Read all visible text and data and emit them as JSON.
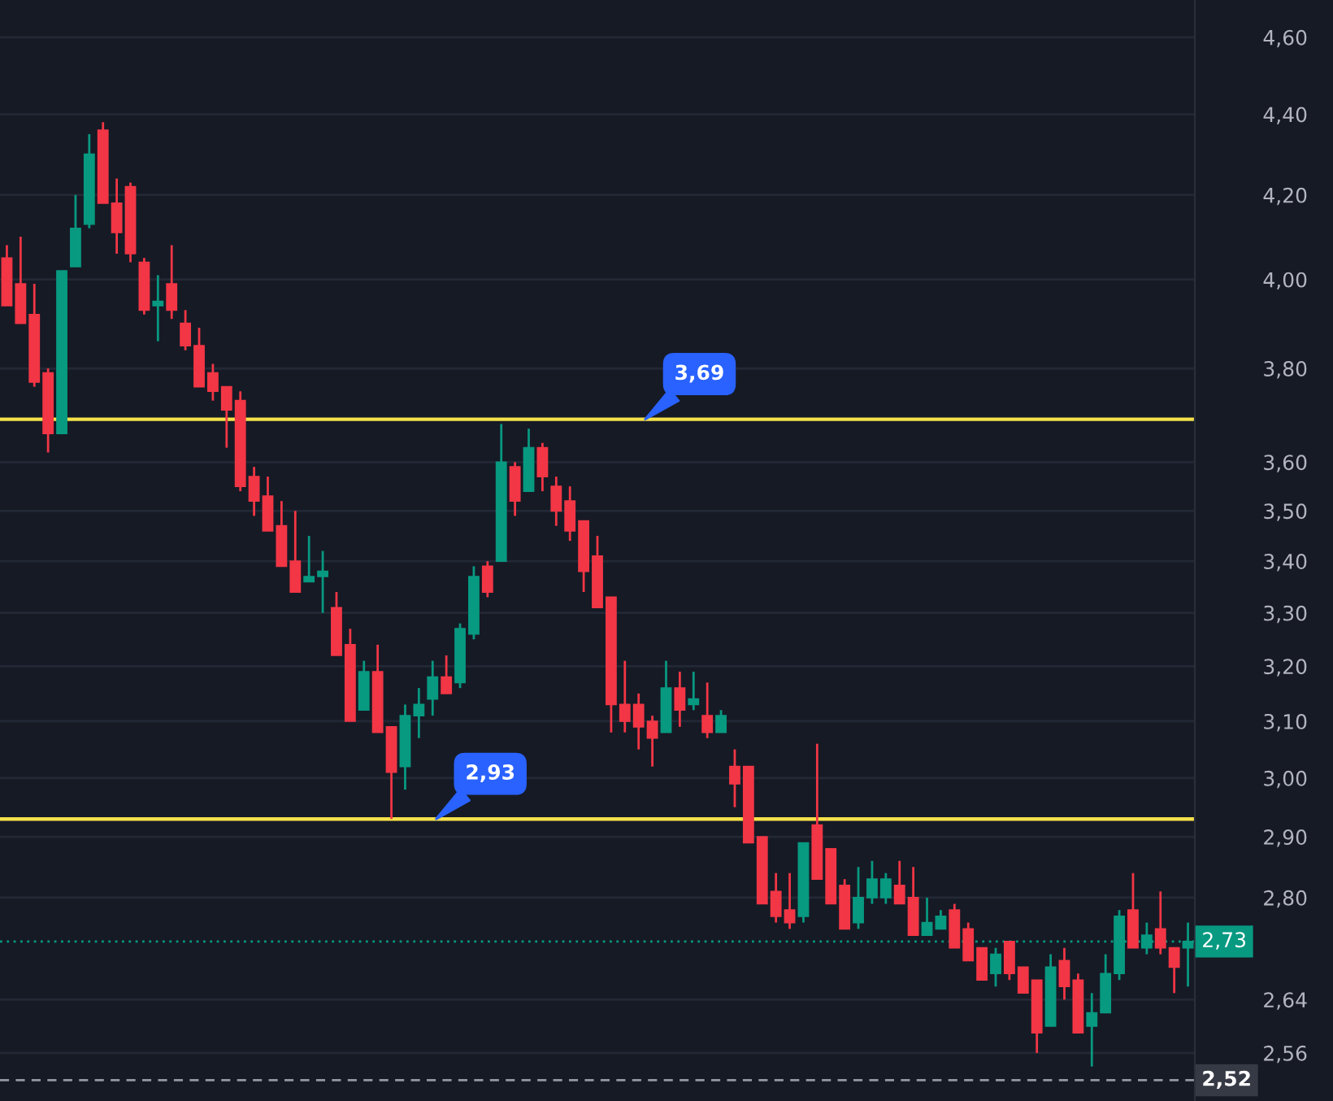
{
  "chart_data": {
    "type": "candlestick",
    "categories": [
      null,
      null,
      null,
      null,
      null,
      null,
      null,
      null,
      null,
      null,
      null,
      null,
      null,
      null,
      null,
      null,
      null,
      null,
      null,
      null,
      null,
      null,
      null,
      null,
      null,
      null,
      null,
      null,
      null,
      null,
      null,
      null,
      null,
      null,
      null,
      null,
      null,
      null,
      null,
      null,
      null,
      null,
      null,
      null,
      null,
      null,
      null,
      null,
      null,
      null,
      null,
      null,
      null,
      null,
      null,
      null,
      null,
      null,
      null,
      null,
      null,
      null,
      null,
      null,
      null,
      null,
      null,
      null,
      null,
      null,
      null,
      null,
      null,
      null,
      null,
      null,
      null,
      null,
      null,
      null,
      null,
      null,
      null,
      null,
      null,
      null,
      null
    ],
    "ohlc": [
      [
        4.05,
        4.08,
        3.94,
        3.94
      ],
      [
        3.99,
        4.1,
        3.9,
        3.9
      ],
      [
        3.92,
        3.99,
        3.76,
        3.77
      ],
      [
        3.79,
        3.8,
        3.62,
        3.66
      ],
      [
        3.66,
        4.02,
        3.66,
        4.02
      ],
      [
        4.03,
        4.2,
        4.03,
        4.12
      ],
      [
        4.13,
        4.35,
        4.12,
        4.3
      ],
      [
        4.36,
        4.38,
        4.18,
        4.18
      ],
      [
        4.18,
        4.24,
        4.06,
        4.11
      ],
      [
        4.22,
        4.23,
        4.04,
        4.06
      ],
      [
        4.04,
        4.05,
        3.92,
        3.93
      ],
      [
        3.94,
        4.01,
        3.86,
        3.95
      ],
      [
        3.99,
        4.08,
        3.91,
        3.93
      ],
      [
        3.9,
        3.93,
        3.84,
        3.85
      ],
      [
        3.85,
        3.89,
        3.76,
        3.76
      ],
      [
        3.79,
        3.81,
        3.73,
        3.75
      ],
      [
        3.76,
        3.76,
        3.63,
        3.71
      ],
      [
        3.73,
        3.75,
        3.54,
        3.55
      ],
      [
        3.57,
        3.59,
        3.49,
        3.52
      ],
      [
        3.53,
        3.57,
        3.46,
        3.46
      ],
      [
        3.47,
        3.52,
        3.39,
        3.39
      ],
      [
        3.4,
        3.5,
        3.34,
        3.34
      ],
      [
        3.36,
        3.45,
        3.36,
        3.37
      ],
      [
        3.37,
        3.42,
        3.3,
        3.38
      ],
      [
        3.31,
        3.34,
        3.22,
        3.22
      ],
      [
        3.24,
        3.27,
        3.1,
        3.1
      ],
      [
        3.12,
        3.21,
        3.12,
        3.19
      ],
      [
        3.19,
        3.24,
        3.08,
        3.08
      ],
      [
        3.09,
        3.09,
        2.93,
        3.01
      ],
      [
        3.02,
        3.13,
        2.98,
        3.11
      ],
      [
        3.11,
        3.16,
        3.07,
        3.13
      ],
      [
        3.14,
        3.21,
        3.11,
        3.18
      ],
      [
        3.18,
        3.22,
        3.15,
        3.15
      ],
      [
        3.17,
        3.28,
        3.16,
        3.27
      ],
      [
        3.26,
        3.39,
        3.25,
        3.37
      ],
      [
        3.39,
        3.4,
        3.33,
        3.34
      ],
      [
        3.4,
        3.68,
        3.4,
        3.6
      ],
      [
        3.59,
        3.6,
        3.49,
        3.52
      ],
      [
        3.54,
        3.67,
        3.54,
        3.63
      ],
      [
        3.63,
        3.64,
        3.54,
        3.57
      ],
      [
        3.55,
        3.57,
        3.47,
        3.5
      ],
      [
        3.52,
        3.55,
        3.44,
        3.46
      ],
      [
        3.48,
        3.48,
        3.34,
        3.38
      ],
      [
        3.41,
        3.45,
        3.31,
        3.31
      ],
      [
        3.33,
        3.33,
        3.08,
        3.13
      ],
      [
        3.13,
        3.21,
        3.08,
        3.1
      ],
      [
        3.13,
        3.15,
        3.05,
        3.09
      ],
      [
        3.1,
        3.11,
        3.02,
        3.07
      ],
      [
        3.08,
        3.21,
        3.08,
        3.16
      ],
      [
        3.16,
        3.19,
        3.09,
        3.12
      ],
      [
        3.13,
        3.19,
        3.12,
        3.14
      ],
      [
        3.11,
        3.17,
        3.07,
        3.08
      ],
      [
        3.08,
        3.12,
        3.08,
        3.11
      ],
      [
        3.02,
        3.05,
        2.95,
        2.99
      ],
      [
        3.02,
        3.02,
        2.89,
        2.89
      ],
      [
        2.9,
        2.9,
        2.79,
        2.79
      ],
      [
        2.81,
        2.84,
        2.76,
        2.77
      ],
      [
        2.78,
        2.84,
        2.75,
        2.76
      ],
      [
        2.77,
        2.89,
        2.76,
        2.89
      ],
      [
        2.92,
        3.06,
        2.83,
        2.83
      ],
      [
        2.88,
        2.88,
        2.79,
        2.79
      ],
      [
        2.82,
        2.83,
        2.75,
        2.75
      ],
      [
        2.76,
        2.85,
        2.75,
        2.8
      ],
      [
        2.8,
        2.86,
        2.79,
        2.83
      ],
      [
        2.8,
        2.84,
        2.79,
        2.83
      ],
      [
        2.82,
        2.86,
        2.79,
        2.79
      ],
      [
        2.8,
        2.85,
        2.74,
        2.74
      ],
      [
        2.74,
        2.8,
        2.74,
        2.76
      ],
      [
        2.75,
        2.78,
        2.75,
        2.77
      ],
      [
        2.78,
        2.79,
        2.72,
        2.72
      ],
      [
        2.75,
        2.76,
        2.7,
        2.7
      ],
      [
        2.72,
        2.72,
        2.67,
        2.67
      ],
      [
        2.68,
        2.72,
        2.66,
        2.71
      ],
      [
        2.73,
        2.73,
        2.67,
        2.68
      ],
      [
        2.69,
        2.69,
        2.65,
        2.65
      ],
      [
        2.67,
        2.67,
        2.56,
        2.59
      ],
      [
        2.6,
        2.71,
        2.6,
        2.69
      ],
      [
        2.7,
        2.72,
        2.64,
        2.66
      ],
      [
        2.67,
        2.68,
        2.59,
        2.59
      ],
      [
        2.6,
        2.65,
        2.54,
        2.62
      ],
      [
        2.62,
        2.71,
        2.62,
        2.68
      ],
      [
        2.68,
        2.78,
        2.67,
        2.77
      ],
      [
        2.78,
        2.84,
        2.72,
        2.72
      ],
      [
        2.72,
        2.76,
        2.71,
        2.74
      ],
      [
        2.75,
        2.81,
        2.71,
        2.72
      ],
      [
        2.72,
        2.72,
        2.65,
        2.69
      ],
      [
        2.72,
        2.76,
        2.66,
        2.73
      ]
    ],
    "colors": [
      "#f23645",
      "#f23645",
      "#f23645",
      "#f23645",
      "#089981",
      "#089981",
      "#089981",
      "#f23645",
      "#f23645",
      "#f23645",
      "#f23645",
      "#089981",
      "#f23645",
      "#f23645",
      "#f23645",
      "#f23645",
      "#f23645",
      "#f23645",
      "#f23645",
      "#f23645",
      "#f23645",
      "#f23645",
      "#089981",
      "#089981",
      "#f23645",
      "#f23645",
      "#089981",
      "#f23645",
      "#f23645",
      "#089981",
      "#089981",
      "#089981",
      "#f23645",
      "#089981",
      "#089981",
      "#f23645",
      "#089981",
      "#f23645",
      "#089981",
      "#f23645",
      "#f23645",
      "#f23645",
      "#f23645",
      "#f23645",
      "#f23645",
      "#f23645",
      "#f23645",
      "#f23645",
      "#089981",
      "#f23645",
      "#089981",
      "#f23645",
      "#089981",
      "#f23645",
      "#f23645",
      "#f23645",
      "#f23645",
      "#f23645",
      "#089981",
      "#f23645",
      "#f23645",
      "#f23645",
      "#089981",
      "#089981",
      "#089981",
      "#f23645",
      "#f23645",
      "#089981",
      "#089981",
      "#f23645",
      "#f23645",
      "#f23645",
      "#089981",
      "#f23645",
      "#f23645",
      "#f23645",
      "#089981",
      "#f23645",
      "#f23645",
      "#089981",
      "#089981",
      "#089981",
      "#f23645",
      "#089981",
      "#f23645",
      "#f23645",
      "#089981"
    ],
    "log": true,
    "ylim": [
      2.49,
      4.7
    ],
    "yticks": [
      {
        "value": 2.56,
        "label": "2,56"
      },
      {
        "value": 2.64,
        "label": "2,64"
      },
      {
        "value": 2.8,
        "label": "2,80"
      },
      {
        "value": 2.9,
        "label": "2,90"
      },
      {
        "value": 3.0,
        "label": "3,00"
      },
      {
        "value": 3.1,
        "label": "3,10"
      },
      {
        "value": 3.2,
        "label": "3,20"
      },
      {
        "value": 3.3,
        "label": "3,30"
      },
      {
        "value": 3.4,
        "label": "3,40"
      },
      {
        "value": 3.5,
        "label": "3,50"
      },
      {
        "value": 3.6,
        "label": "3,60"
      },
      {
        "value": 3.8,
        "label": "3,80"
      },
      {
        "value": 4.0,
        "label": "4,00"
      },
      {
        "value": 4.2,
        "label": "4,20"
      },
      {
        "value": 4.4,
        "label": "4,40"
      },
      {
        "value": 4.6,
        "label": "4,60"
      }
    ],
    "grid": "y",
    "tick_labels": "y",
    "ref_lines": [
      {
        "axis": "y",
        "value": 3.69,
        "label": "3,69",
        "color": "#f5e14a",
        "line_style": "solid"
      },
      {
        "axis": "y",
        "value": 2.93,
        "label": "2,93",
        "color": "#f5e14a",
        "line_style": "solid"
      },
      {
        "axis": "y",
        "value": 2.73,
        "label": "2,73",
        "color": "#089981",
        "line_style": "dotted"
      },
      {
        "axis": "y",
        "value": 2.52,
        "label": "2,52",
        "color": "#9598a1",
        "line_style": "dashed"
      }
    ]
  }
}
